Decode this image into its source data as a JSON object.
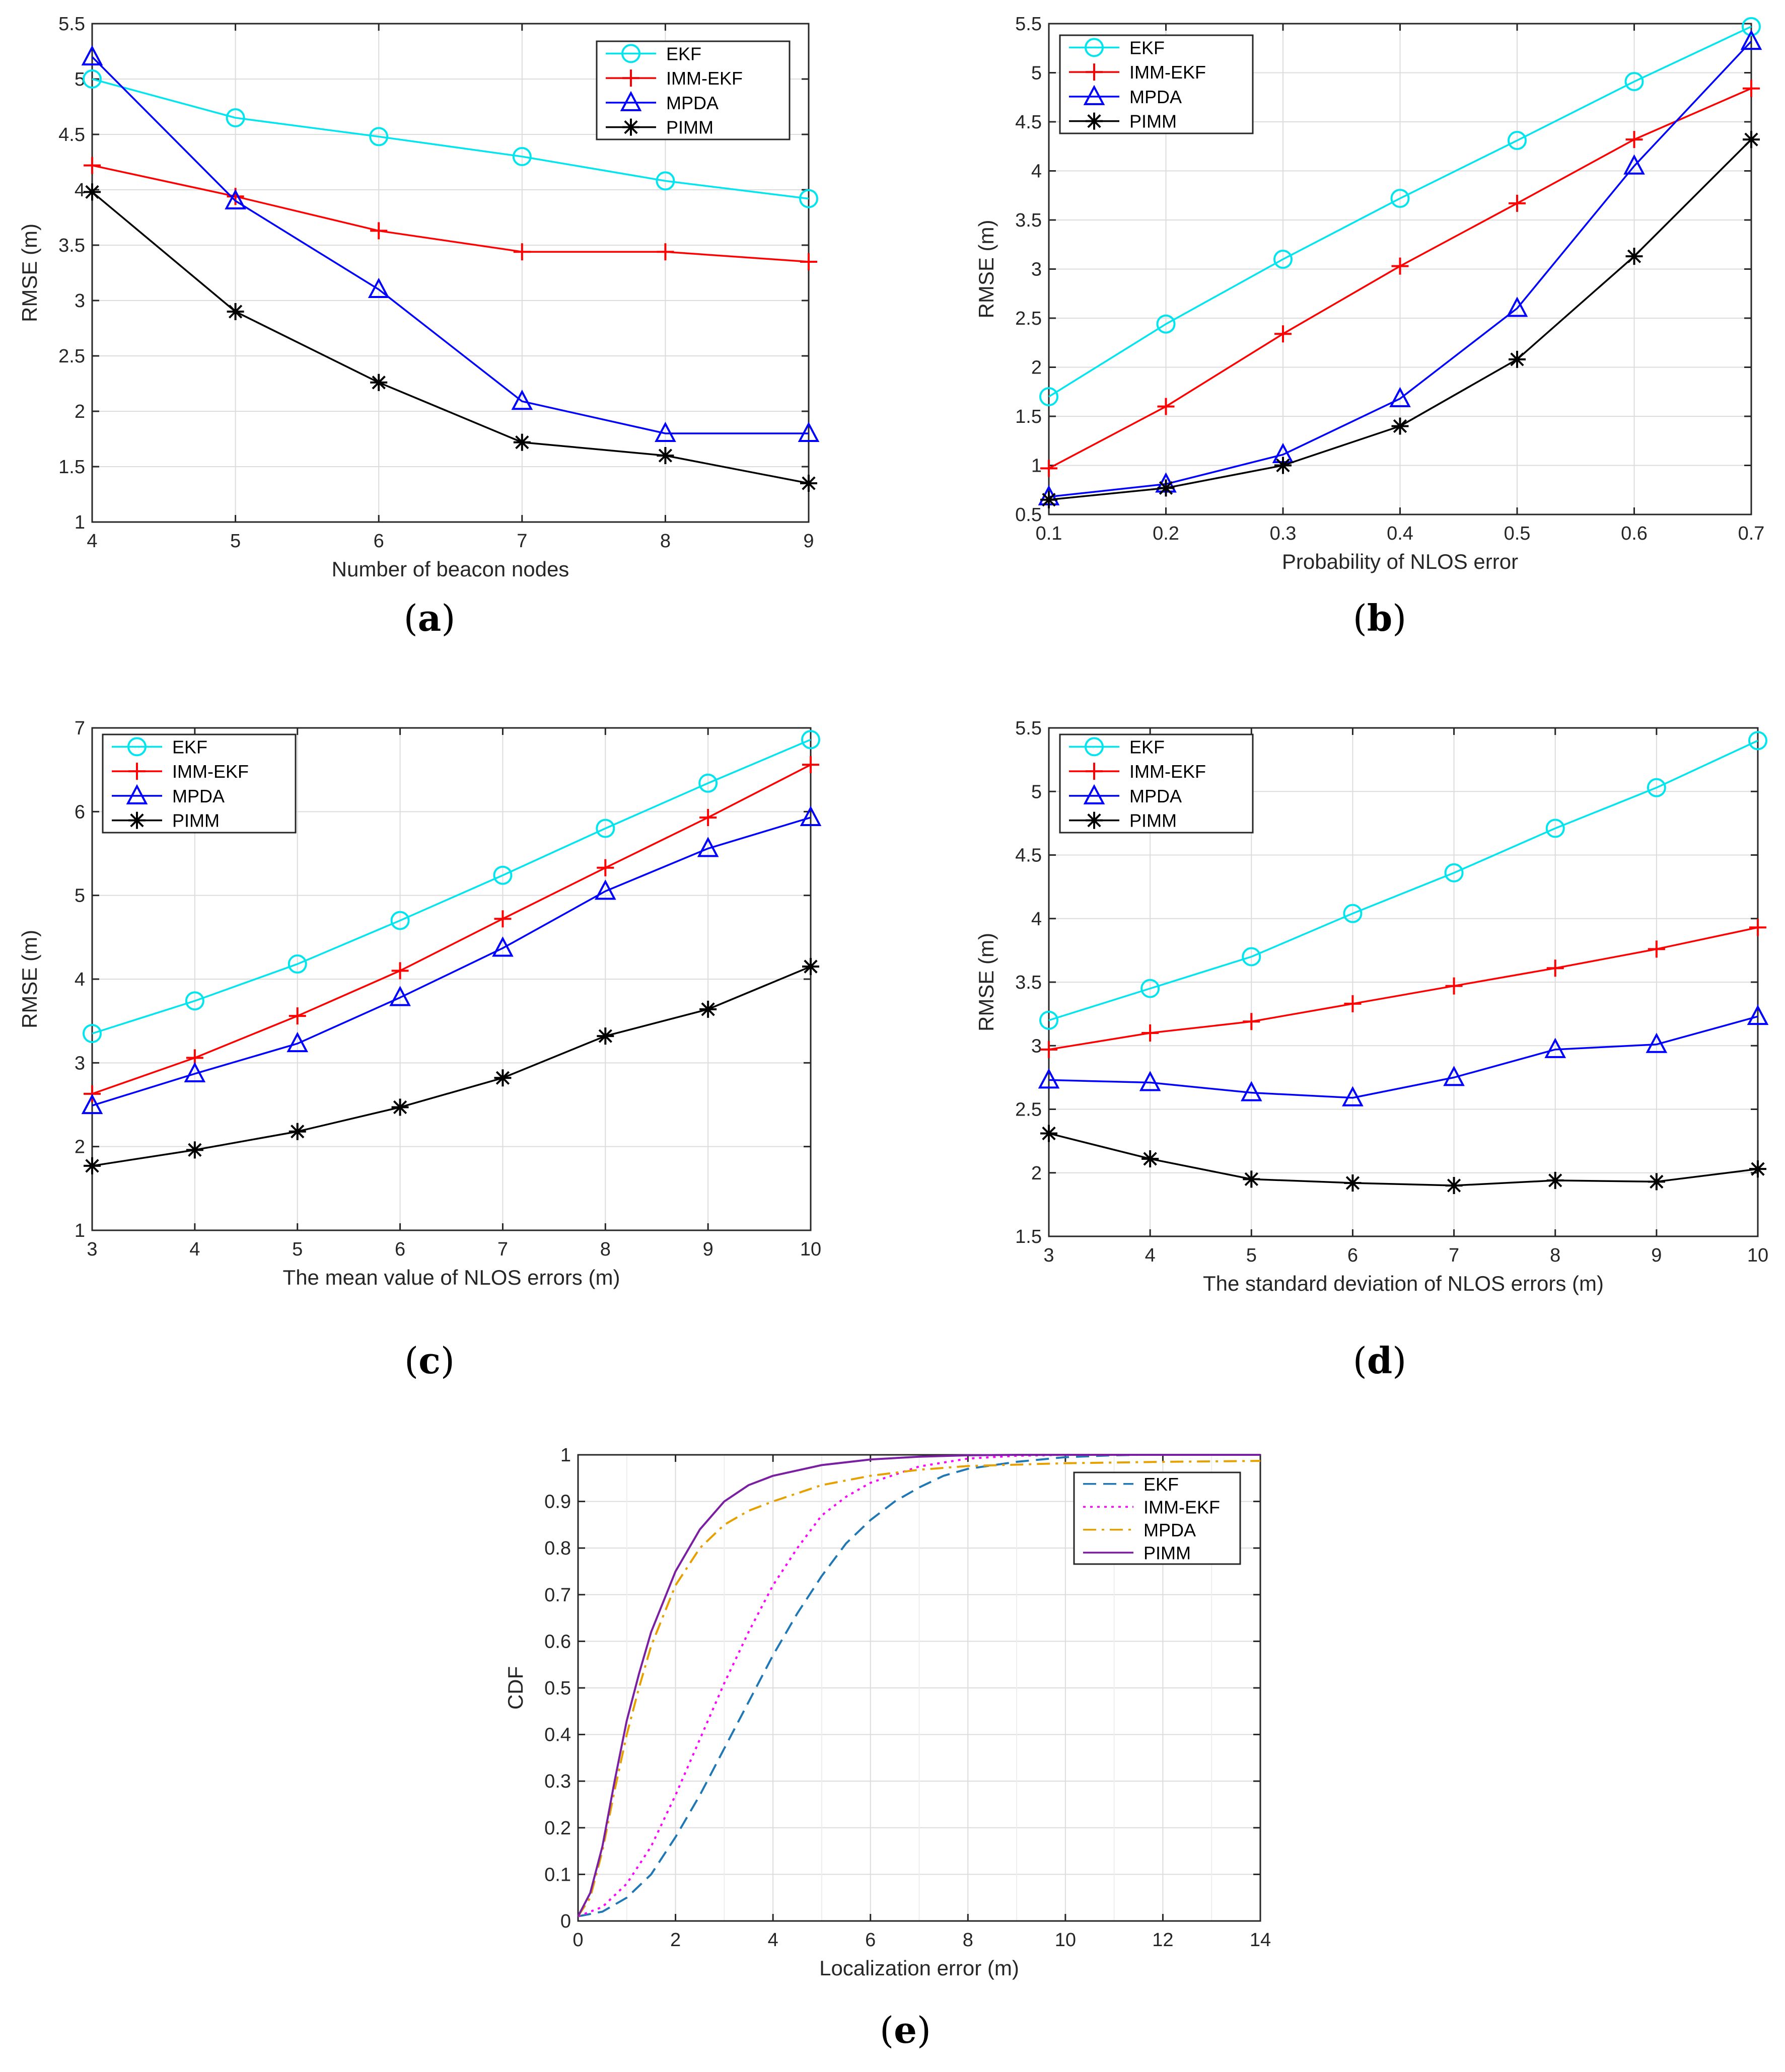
{
  "chart_data": [
    {
      "id": "a",
      "type": "line",
      "caption_letter": "a",
      "xlabel": "Number of beacon nodes",
      "ylabel": "RMSE (m)",
      "xlim": [
        4,
        9
      ],
      "ylim": [
        1,
        5.5
      ],
      "xticks": [
        4,
        5,
        6,
        7,
        8,
        9
      ],
      "xtick_labels": [
        "4",
        "5",
        "6",
        "7",
        "8",
        "9"
      ],
      "yticks": [
        1,
        1.5,
        2,
        2.5,
        3,
        3.5,
        4,
        4.5,
        5,
        5.5
      ],
      "ytick_labels": [
        "1",
        "1.5",
        "2",
        "2.5",
        "3",
        "3.5",
        "4",
        "4.5",
        "5",
        "5.5"
      ],
      "grid": true,
      "legend_position": "top-right",
      "x": [
        4,
        5,
        6,
        7,
        8,
        9
      ],
      "series": [
        {
          "name": "EKF",
          "color": "#00e5ee",
          "marker": "circle",
          "values": [
            5.0,
            4.65,
            4.48,
            4.3,
            4.08,
            3.92
          ]
        },
        {
          "name": "IMM-EKF",
          "color": "#ff0000",
          "marker": "plus",
          "values": [
            4.22,
            3.94,
            3.63,
            3.44,
            3.44,
            3.35
          ]
        },
        {
          "name": "MPDA",
          "color": "#0000ff",
          "marker": "triangle",
          "values": [
            5.2,
            3.9,
            3.1,
            2.09,
            1.8,
            1.8
          ]
        },
        {
          "name": "PIMM",
          "color": "#000000",
          "marker": "star",
          "values": [
            3.98,
            2.9,
            2.26,
            1.72,
            1.6,
            1.35
          ]
        }
      ]
    },
    {
      "id": "b",
      "type": "line",
      "caption_letter": "b",
      "xlabel": "Probability of NLOS error",
      "ylabel": "RMSE (m)",
      "xlim": [
        0.1,
        0.7
      ],
      "ylim": [
        0.5,
        5.5
      ],
      "xticks": [
        0.1,
        0.2,
        0.3,
        0.4,
        0.5,
        0.6,
        0.7
      ],
      "xtick_labels": [
        "0.1",
        "0.2",
        "0.3",
        "0.4",
        "0.5",
        "0.6",
        "0.7"
      ],
      "yticks": [
        0.5,
        1,
        1.5,
        2,
        2.5,
        3,
        3.5,
        4,
        4.5,
        5,
        5.5
      ],
      "ytick_labels": [
        "0.5",
        "1",
        "1.5",
        "2",
        "2.5",
        "3",
        "3.5",
        "4",
        "4.5",
        "5",
        "5.5"
      ],
      "grid": true,
      "legend_position": "top-left",
      "x": [
        0.1,
        0.2,
        0.3,
        0.4,
        0.5,
        0.6,
        0.7
      ],
      "series": [
        {
          "name": "EKF",
          "color": "#00e5ee",
          "marker": "circle",
          "values": [
            1.7,
            2.44,
            3.1,
            3.72,
            4.31,
            4.91,
            5.47
          ]
        },
        {
          "name": "IMM-EKF",
          "color": "#ff0000",
          "marker": "plus",
          "values": [
            0.97,
            1.6,
            2.34,
            3.03,
            3.67,
            4.32,
            4.84
          ]
        },
        {
          "name": "MPDA",
          "color": "#0000ff",
          "marker": "triangle",
          "values": [
            0.68,
            0.81,
            1.11,
            1.68,
            2.6,
            4.05,
            5.32
          ]
        },
        {
          "name": "PIMM",
          "color": "#000000",
          "marker": "star",
          "values": [
            0.65,
            0.77,
            1.0,
            1.4,
            2.08,
            3.13,
            4.32
          ]
        }
      ]
    },
    {
      "id": "c",
      "type": "line",
      "caption_letter": "c",
      "xlabel": "The mean value of NLOS errors (m)",
      "ylabel": "RMSE (m)",
      "xlim": [
        3,
        10
      ],
      "ylim": [
        1,
        7
      ],
      "xticks": [
        3,
        4,
        5,
        6,
        7,
        8,
        9,
        10
      ],
      "xtick_labels": [
        "3",
        "4",
        "5",
        "6",
        "7",
        "8",
        "9",
        "10"
      ],
      "yticks": [
        1,
        2,
        3,
        4,
        5,
        6,
        7
      ],
      "ytick_labels": [
        "1",
        "2",
        "3",
        "4",
        "5",
        "6",
        "7"
      ],
      "grid": true,
      "legend_position": "top-left",
      "x": [
        3,
        4,
        5,
        6,
        7,
        8,
        9,
        10
      ],
      "series": [
        {
          "name": "EKF",
          "color": "#00e5ee",
          "marker": "circle",
          "values": [
            3.35,
            3.74,
            4.18,
            4.7,
            5.24,
            5.8,
            6.34,
            6.86
          ]
        },
        {
          "name": "IMM-EKF",
          "color": "#ff0000",
          "marker": "plus",
          "values": [
            2.63,
            3.06,
            3.56,
            4.1,
            4.72,
            5.33,
            5.93,
            6.56
          ]
        },
        {
          "name": "MPDA",
          "color": "#0000ff",
          "marker": "triangle",
          "values": [
            2.49,
            2.87,
            3.23,
            3.78,
            4.37,
            5.05,
            5.56,
            5.93
          ]
        },
        {
          "name": "PIMM",
          "color": "#000000",
          "marker": "star",
          "values": [
            1.77,
            1.96,
            2.18,
            2.47,
            2.82,
            3.32,
            3.64,
            4.15
          ]
        }
      ]
    },
    {
      "id": "d",
      "type": "line",
      "caption_letter": "d",
      "xlabel": "The standard deviation of NLOS errors (m)",
      "ylabel": "RMSE (m)",
      "xlim": [
        3,
        10
      ],
      "ylim": [
        1.5,
        5.5
      ],
      "xticks": [
        3,
        4,
        5,
        6,
        7,
        8,
        9,
        10
      ],
      "xtick_labels": [
        "3",
        "4",
        "5",
        "6",
        "7",
        "8",
        "9",
        "10"
      ],
      "yticks": [
        1.5,
        2,
        2.5,
        3,
        3.5,
        4,
        4.5,
        5,
        5.5
      ],
      "ytick_labels": [
        "1.5",
        "2",
        "2.5",
        "3",
        "3.5",
        "4",
        "4.5",
        "5",
        "5.5"
      ],
      "grid": true,
      "legend_position": "top-left",
      "x": [
        3,
        4,
        5,
        6,
        7,
        8,
        9,
        10
      ],
      "series": [
        {
          "name": "EKF",
          "color": "#00e5ee",
          "marker": "circle",
          "values": [
            3.2,
            3.45,
            3.7,
            4.04,
            4.36,
            4.71,
            5.03,
            5.4
          ]
        },
        {
          "name": "IMM-EKF",
          "color": "#ff0000",
          "marker": "plus",
          "values": [
            2.97,
            3.1,
            3.19,
            3.33,
            3.47,
            3.61,
            3.76,
            3.93
          ]
        },
        {
          "name": "MPDA",
          "color": "#0000ff",
          "marker": "triangle",
          "values": [
            2.73,
            2.71,
            2.63,
            2.59,
            2.75,
            2.97,
            3.01,
            3.23
          ]
        },
        {
          "name": "PIMM",
          "color": "#000000",
          "marker": "star",
          "values": [
            2.31,
            2.11,
            1.95,
            1.92,
            1.9,
            1.94,
            1.93,
            2.03
          ]
        }
      ]
    },
    {
      "id": "e",
      "type": "line",
      "caption_letter": "e",
      "xlabel": "Localization error (m)",
      "ylabel": "CDF",
      "xlim": [
        0,
        14
      ],
      "ylim": [
        0,
        1
      ],
      "xticks": [
        0,
        2,
        4,
        6,
        8,
        10,
        12,
        14
      ],
      "xtick_labels": [
        "0",
        "2",
        "4",
        "6",
        "8",
        "10",
        "12",
        "14"
      ],
      "yticks": [
        0,
        0.1,
        0.2,
        0.3,
        0.4,
        0.5,
        0.6,
        0.7,
        0.8,
        0.9,
        1
      ],
      "ytick_labels": [
        "0",
        "0.1",
        "0.2",
        "0.3",
        "0.4",
        "0.5",
        "0.6",
        "0.7",
        "0.8",
        "0.9",
        "1"
      ],
      "minor_xgrid": [
        1,
        3,
        5,
        7,
        9,
        11,
        13
      ],
      "grid": true,
      "legend_position": "top-right",
      "series": [
        {
          "name": "EKF",
          "color": "#1f77b4",
          "style": "dashed",
          "x": [
            0,
            0.5,
            1,
            1.5,
            2,
            2.5,
            3,
            3.5,
            4,
            4.5,
            5,
            5.5,
            6,
            6.5,
            7,
            7.5,
            8,
            9,
            10,
            11,
            11.5
          ],
          "values": [
            0.01,
            0.02,
            0.05,
            0.1,
            0.18,
            0.27,
            0.37,
            0.47,
            0.57,
            0.66,
            0.74,
            0.81,
            0.86,
            0.9,
            0.93,
            0.955,
            0.97,
            0.985,
            0.995,
            0.999,
            1.0
          ]
        },
        {
          "name": "IMM-EKF",
          "color": "#ff00ff",
          "style": "dotted",
          "x": [
            0,
            0.5,
            1,
            1.5,
            2,
            2.5,
            3,
            3.5,
            4,
            4.5,
            5,
            5.5,
            6,
            7,
            8,
            9,
            10,
            11
          ],
          "values": [
            0.01,
            0.03,
            0.08,
            0.16,
            0.27,
            0.39,
            0.51,
            0.62,
            0.72,
            0.8,
            0.87,
            0.91,
            0.94,
            0.975,
            0.992,
            0.998,
            1.0,
            1.0
          ]
        },
        {
          "name": "MPDA",
          "color": "#e6a000",
          "style": "dashdot",
          "x": [
            0,
            0.25,
            0.5,
            0.75,
            1,
            1.25,
            1.5,
            2,
            2.5,
            3,
            3.5,
            4,
            5,
            6,
            7,
            8,
            10,
            12,
            14
          ],
          "values": [
            0.01,
            0.05,
            0.15,
            0.28,
            0.4,
            0.5,
            0.59,
            0.72,
            0.8,
            0.85,
            0.88,
            0.9,
            0.935,
            0.955,
            0.968,
            0.976,
            0.982,
            0.985,
            0.987
          ]
        },
        {
          "name": "PIMM",
          "color": "#7b1fa2",
          "style": "solid",
          "x": [
            0,
            0.25,
            0.5,
            0.75,
            1,
            1.25,
            1.5,
            2,
            2.5,
            3,
            3.5,
            4,
            5,
            6,
            7,
            8,
            9,
            10,
            12,
            14
          ],
          "values": [
            0.01,
            0.06,
            0.16,
            0.3,
            0.43,
            0.53,
            0.62,
            0.75,
            0.84,
            0.9,
            0.935,
            0.955,
            0.978,
            0.99,
            0.996,
            0.999,
            1.0,
            1.0,
            1.0,
            1.0
          ]
        }
      ]
    }
  ]
}
